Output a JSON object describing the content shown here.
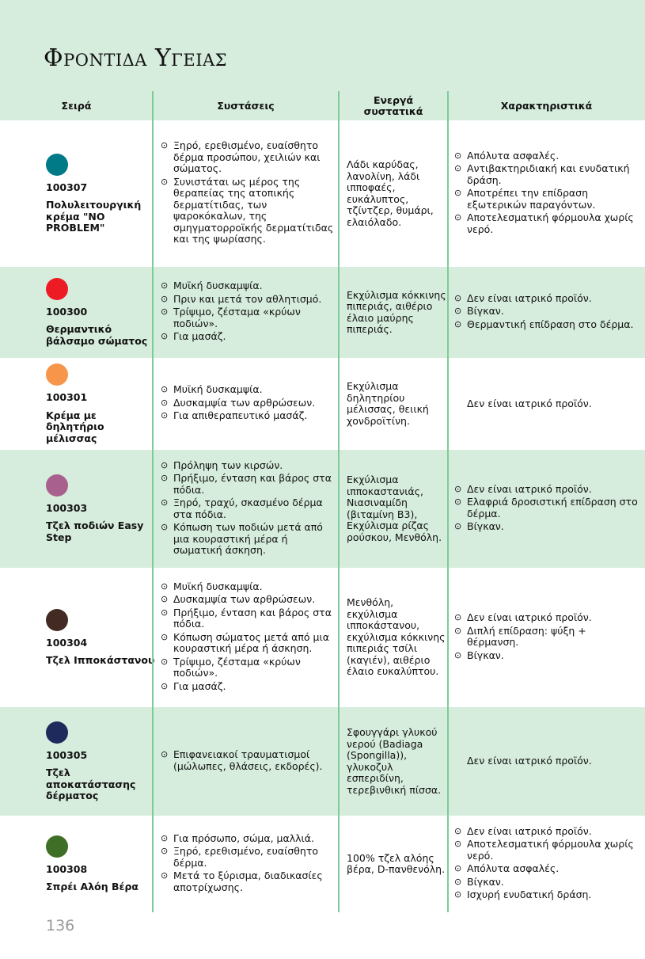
{
  "title": "Φροντιδα Υγειας",
  "page_number": "136",
  "colors": {
    "band": "#d6ecdc",
    "divider": "#7ccc98"
  },
  "headers": [
    "Σειρά",
    "Συστάσεις",
    "Ενεργά συστατικά",
    "Χαρακτηριστικά"
  ],
  "bullet_icon": "circle-dot-icon",
  "rows": [
    {
      "color": "#007a87",
      "code": "100307",
      "name": "Πολυλειτουργική κρέμα \"NO PROBLEM\"",
      "recommendations": [
        "Ξηρό, ερεθισμένο, ευαίσθητο δέρμα προσώπου, χειλιών και σώματος.",
        "Συνιστάται ως μέρος της θεραπείας της ατοπικής δερματίτιδας, των ψαροκόκαλων, της σμηγματορροϊκής δερματίτιδας και της ψωρίασης."
      ],
      "ingredients": "Λάδι καρύδας, λανολίνη, λάδι ιπποφαές, ευκάλυπτος, τζίντζερ, θυμάρι, ελαιόλαδο.",
      "features": [
        "Απόλυτα ασφαλές.",
        "Αντιβακτηριδιακή και ενυδατική δράση.",
        "Αποτρέπει την επίδραση εξωτερικών παραγόντων.",
        "Αποτελεσματική φόρμουλα χωρίς νερό."
      ]
    },
    {
      "color": "#ed1c24",
      "code": "100300",
      "name": "Θερμαντικό βάλσαμο σώματος",
      "recommendations": [
        "Μυϊκή δυσκαμψία.",
        "Πριν και μετά τον αθλητισμό.",
        "Τρίψιμο, ζέσταμα «κρύων ποδιών».",
        "Για μασάζ."
      ],
      "ingredients": "Εκχύλισμα κόκκινης πιπεριάς, αιθέριο έλαιο μαύρης πιπεριάς.",
      "features": [
        "Δεν είναι ιατρικό προϊόν.",
        "Βίγκαν.",
        "Θερμαντική επίδραση στο δέρμα."
      ]
    },
    {
      "color": "#f7964a",
      "code": "100301",
      "name": "Κρέμα με δηλητήριο μέλισσας",
      "recommendations": [
        "Μυϊκή δυσκαμψία.",
        "Δυσκαμψία των αρθρώσεων.",
        "Για απιθεραπευτικό μασάζ."
      ],
      "ingredients": "Εκχύλισμα δηλητηρίου μέλισσας, θειική χονδροϊτίνη.",
      "features_text": "Δεν είναι ιατρικό προϊόν."
    },
    {
      "color": "#a8608e",
      "code": "100303",
      "name": "Τζελ ποδιών Easy Step",
      "recommendations": [
        "Πρόληψη των κιρσών.",
        "Πρήξιμο, ένταση και βάρος στα πόδια.",
        "Ξηρό, τραχύ, σκασμένο δέρμα στα πόδια.",
        "Κόπωση των ποδιών μετά από μια κουραστική μέρα ή σωματική άσκηση."
      ],
      "ingredients": "Εκχύλισμα ιπποκαστανιάς, Νιασιναμίδη (βιταμίνη B3), Εκχύλισμα ρίζας ρούσκου, Μενθόλη.",
      "features": [
        "Δεν είναι ιατρικό προϊόν.",
        "Ελαφριά δροσιστική επίδραση στο δέρμα.",
        "Βίγκαν."
      ]
    },
    {
      "color": "#432b24",
      "code": "100304",
      "name": "Τζελ Ιπποκάστανου",
      "recommendations": [
        "Μυϊκή δυσκαμψία.",
        "Δυσκαμψία των αρθρώσεων.",
        "Πρήξιμο, ένταση και βάρος στα πόδια.",
        "Κόπωση σώματος μετά από μια κουραστική μέρα ή άσκηση.",
        "Τρίψιμο, ζέσταμα «κρύων ποδιών».",
        "Για μασάζ."
      ],
      "ingredients": "Μενθόλη, εκχύλισμα ιπποκάστανου, εκχύλισμα κόκκινης πιπεριάς τσίλι (καγιέν), αιθέριο έλαιο ευκαλύπτου.",
      "features": [
        "Δεν είναι ιατρικό προϊόν.",
        "Διπλή επίδραση: ψύξη + θέρμανση.",
        "Βίγκαν."
      ]
    },
    {
      "color": "#1f2a5c",
      "code": "100305",
      "name": "Τζελ αποκατάστασης δέρματος",
      "recommendations": [
        "Επιφανειακοί τραυματισμοί (μώλωπες, θλάσεις, εκδορές)."
      ],
      "ingredients": "Σφουγγάρι γλυκού νερού (Badiaga (Spongilla)), γλυκοζυλ εσπεριδίνη, τερεβινθική πίσσα.",
      "features_text": "Δεν είναι ιατρικό προϊόν."
    },
    {
      "color": "#3f6e26",
      "code": "100308",
      "name": "Σπρέι Αλόη Βέρα",
      "recommendations": [
        "Για πρόσωπο, σώμα, μαλλιά.",
        "Ξηρό, ερεθισμένο, ευαίσθητο δέρμα.",
        "Μετά το ξύρισμα, διαδικασίες αποτρίχωσης."
      ],
      "ingredients": "100% τζελ αλόης βέρα, D-πανθενόλη.",
      "features": [
        "Δεν είναι ιατρικό προϊόν.",
        "Αποτελεσματική φόρμουλα χωρίς νερό.",
        "Απόλυτα ασφαλές.",
        "Βίγκαν.",
        "Ισχυρή ενυδατική δράση."
      ]
    }
  ]
}
